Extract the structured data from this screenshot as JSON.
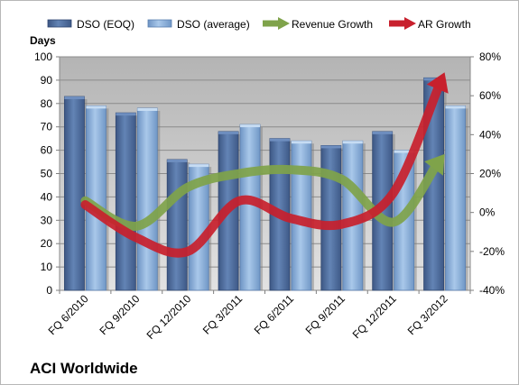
{
  "chart_data": {
    "type": "bar",
    "title": "ACI Worldwide",
    "categories": [
      "FQ 6/2010",
      "FQ 9/2010",
      "FQ 12/2010",
      "FQ 3/2011",
      "FQ 6/2011",
      "FQ 9/2011",
      "FQ 12/2011",
      "FQ 3/2012"
    ],
    "ylabel": "Days",
    "ylim": [
      0,
      100
    ],
    "yticks": [
      "0",
      "10",
      "20",
      "30",
      "40",
      "50",
      "60",
      "70",
      "80",
      "90",
      "100"
    ],
    "y2lim": [
      -40,
      80
    ],
    "y2ticks": [
      "-40%",
      "-20%",
      "0%",
      "20%",
      "40%",
      "60%",
      "80%"
    ],
    "grid": true,
    "legend_position": "top",
    "series": [
      {
        "name": "DSO (EOQ)",
        "kind": "bar",
        "axis": "left",
        "color": "#4f6fa0",
        "values": [
          83,
          76,
          56,
          68,
          65,
          62,
          68,
          91
        ]
      },
      {
        "name": "DSO (average)",
        "kind": "bar",
        "axis": "left",
        "color": "#8fb3dc",
        "values": [
          79,
          78,
          54,
          71,
          64,
          64,
          60,
          79
        ]
      },
      {
        "name": "Revenue Growth",
        "kind": "arrow-line",
        "axis": "right",
        "color": "#7fa34a",
        "values": [
          6,
          -7,
          13,
          20,
          22,
          17,
          -5,
          30
        ]
      },
      {
        "name": "AR Growth",
        "kind": "arrow-line",
        "axis": "right",
        "color": "#c8202d",
        "values": [
          4,
          -13,
          -20,
          6,
          -3,
          -6,
          10,
          72
        ]
      }
    ]
  }
}
